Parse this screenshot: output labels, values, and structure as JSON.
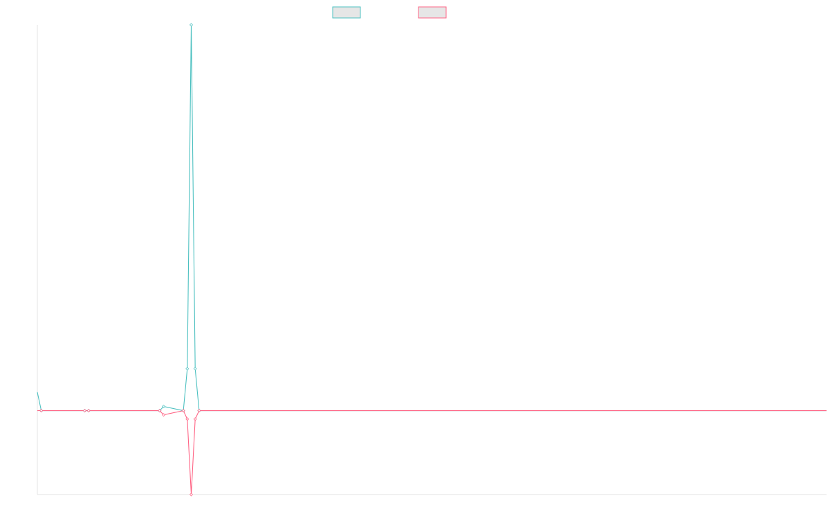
{
  "chart_data": {
    "type": "line",
    "title": "",
    "xlabel": "",
    "ylabel": "",
    "x": [
      0,
      1,
      12,
      13,
      31,
      32,
      37,
      38,
      39,
      40,
      41,
      200
    ],
    "ylim": [
      -100,
      460
    ],
    "grid": false,
    "legend": "top-center",
    "series": [
      {
        "color": "#4bc0c0",
        "fill": "#e6e6e6",
        "values": [
          22,
          0,
          0,
          0,
          0,
          5,
          0,
          50,
          460,
          50,
          0,
          0
        ]
      },
      {
        "color": "#ff6384",
        "fill": "#e6e6e6",
        "values": [
          0,
          0,
          0,
          0,
          0,
          -5,
          0,
          -10,
          -100,
          -10,
          0,
          0
        ]
      }
    ]
  }
}
